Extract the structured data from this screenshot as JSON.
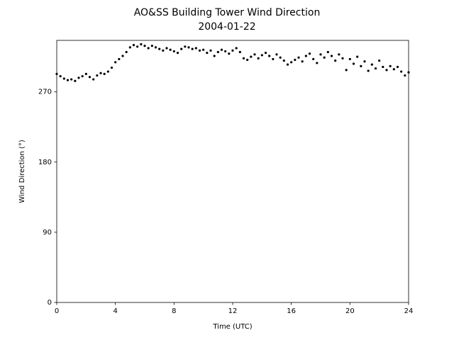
{
  "chart_data": {
    "type": "scatter",
    "title": "AO&SS Building Tower Wind Direction",
    "subtitle": "2004-01-22",
    "x_label": "Time (UTC)",
    "y_label": "Wind Direction (°)",
    "color": "#000000",
    "grid": false,
    "xlim": [
      0,
      24
    ],
    "xticks": [
      0,
      4,
      8,
      12,
      16,
      20,
      24
    ],
    "ylim": [
      0,
      336
    ],
    "yticks": [
      0,
      90,
      180,
      270
    ],
    "x": [
      0,
      0.25,
      0.5,
      0.75,
      1,
      1.25,
      1.5,
      1.75,
      2,
      2.25,
      2.5,
      2.75,
      3,
      3.25,
      3.5,
      3.75,
      4,
      4.25,
      4.5,
      4.75,
      5,
      5.25,
      5.5,
      5.75,
      6,
      6.25,
      6.5,
      6.75,
      7,
      7.25,
      7.5,
      7.75,
      8,
      8.25,
      8.5,
      8.75,
      9,
      9.25,
      9.5,
      9.75,
      10,
      10.25,
      10.5,
      10.75,
      11,
      11.25,
      11.5,
      11.75,
      12,
      12.25,
      12.5,
      12.75,
      13,
      13.25,
      13.5,
      13.75,
      14,
      14.25,
      14.5,
      14.75,
      15,
      15.25,
      15.5,
      15.75,
      16,
      16.25,
      16.5,
      16.75,
      17,
      17.25,
      17.5,
      17.75,
      18,
      18.25,
      18.5,
      18.75,
      19,
      19.25,
      19.5,
      19.75,
      20,
      20.25,
      20.5,
      20.75,
      21,
      21.25,
      21.5,
      21.75,
      22,
      22.25,
      22.5,
      22.75,
      23,
      23.25,
      23.5,
      23.75,
      24
    ],
    "values": [
      293,
      290,
      287,
      285,
      286,
      284,
      288,
      290,
      293,
      289,
      286,
      291,
      294,
      293,
      296,
      301,
      308,
      312,
      316,
      321,
      327,
      330,
      328,
      331,
      329,
      326,
      329,
      327,
      325,
      323,
      326,
      324,
      322,
      320,
      325,
      328,
      327,
      325,
      326,
      323,
      324,
      320,
      323,
      316,
      321,
      324,
      322,
      319,
      323,
      326,
      321,
      313,
      311,
      315,
      318,
      313,
      317,
      320,
      316,
      312,
      318,
      314,
      310,
      305,
      308,
      311,
      314,
      309,
      316,
      319,
      312,
      307,
      318,
      314,
      321,
      316,
      310,
      318,
      313,
      298,
      312,
      306,
      315,
      303,
      309,
      297,
      305,
      300,
      310,
      302,
      298,
      303,
      299,
      302,
      296,
      291,
      295
    ]
  }
}
